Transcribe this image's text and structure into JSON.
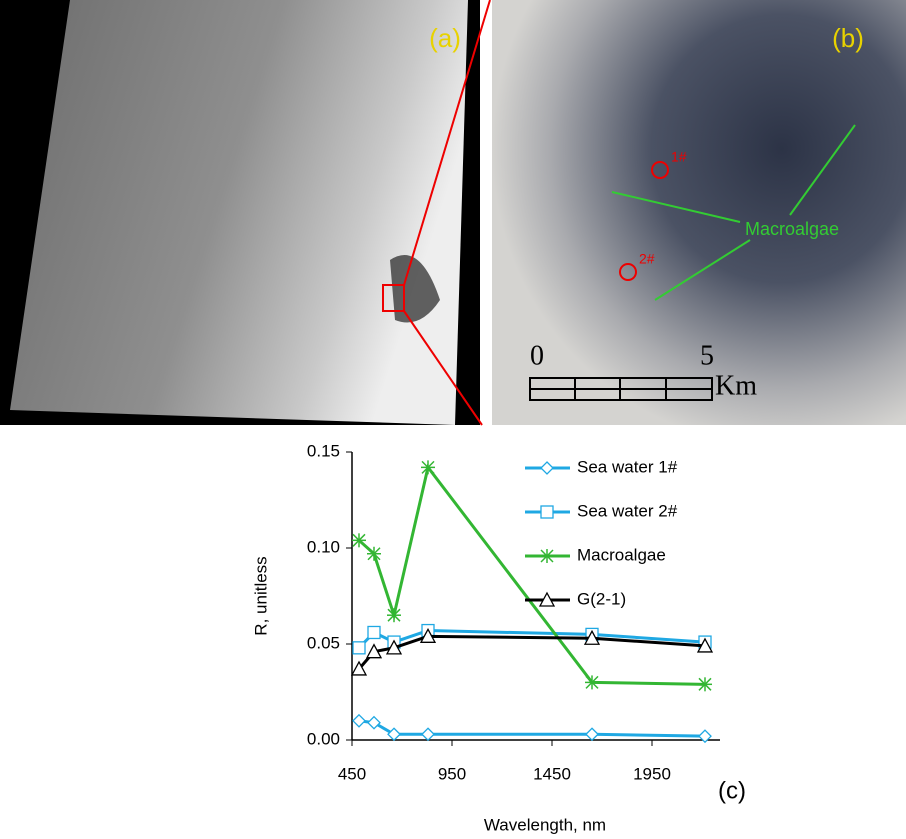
{
  "panel_a": {
    "label": "(a)"
  },
  "panel_b": {
    "label": "(b)",
    "point_1": "1#",
    "point_2": "2#",
    "annotation": "Macroalgae",
    "scale_start": "0",
    "scale_end": "5",
    "scale_unit": "Km"
  },
  "chart_data": {
    "type": "line",
    "panel_label": "(c)",
    "x_label": "Wavelength, nm",
    "y_label": "R, unitless",
    "x": [
      485,
      560,
      660,
      830,
      1650,
      2215
    ],
    "series": [
      {
        "name": "Sea water 1#",
        "color": "#1fa8e3",
        "marker": "diamond",
        "values": [
          0.01,
          0.009,
          0.003,
          0.003,
          0.003,
          0.002
        ]
      },
      {
        "name": "Sea water 2#",
        "color": "#1fa8e3",
        "marker": "square",
        "values": [
          0.048,
          0.056,
          0.051,
          0.057,
          0.055,
          0.051
        ]
      },
      {
        "name": "Macroalgae",
        "color": "#33b633",
        "marker": "asterisk",
        "values": [
          0.104,
          0.097,
          0.065,
          0.142,
          0.03,
          0.029
        ]
      },
      {
        "name": "G(2-1)",
        "color": "#000000",
        "marker": "triangle",
        "values": [
          0.037,
          0.046,
          0.048,
          0.054,
          0.053,
          0.049
        ]
      }
    ],
    "xlim": [
      450,
      2290
    ],
    "xticks": [
      450,
      950,
      1450,
      1950
    ],
    "ylim": [
      0,
      0.15
    ],
    "yticks": [
      {
        "value": 0,
        "label": "0.00"
      },
      0.05,
      {
        "value": 0.1,
        "label": "0.10"
      },
      0.15
    ],
    "grid": false,
    "legend": "top-right"
  }
}
